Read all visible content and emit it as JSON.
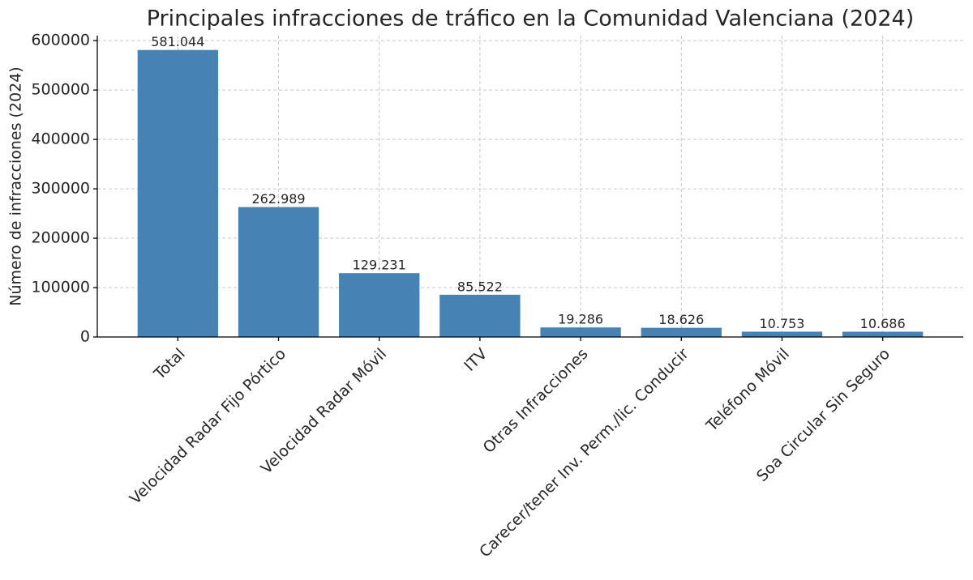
{
  "chart_data": {
    "type": "bar",
    "title": "Principales infracciones de tráfico en la Comunidad Valenciana (2024)",
    "y_label": "Número de infracciones (2024)",
    "categories": [
      "Total",
      "Velocidad Radar Fijo Pórtico",
      "Velocidad Radar Móvil",
      "ITV",
      "Otras Infracciones",
      "Carecer/tener Inv. Perm./lic. Conducir",
      "Teléfono Móvil",
      "Soa Circular Sin Seguro"
    ],
    "values": [
      581044,
      262989,
      129231,
      85522,
      19286,
      18626,
      10753,
      10686
    ],
    "value_labels": [
      "581.044",
      "262.989",
      "129.231",
      "85.522",
      "19.286",
      "18.626",
      "10.753",
      "10.686"
    ],
    "color": "#4682b4",
    "ylim": [
      0,
      610096
    ],
    "yticks": [
      0,
      100000,
      200000,
      300000,
      400000,
      500000,
      600000
    ],
    "grid": true
  }
}
